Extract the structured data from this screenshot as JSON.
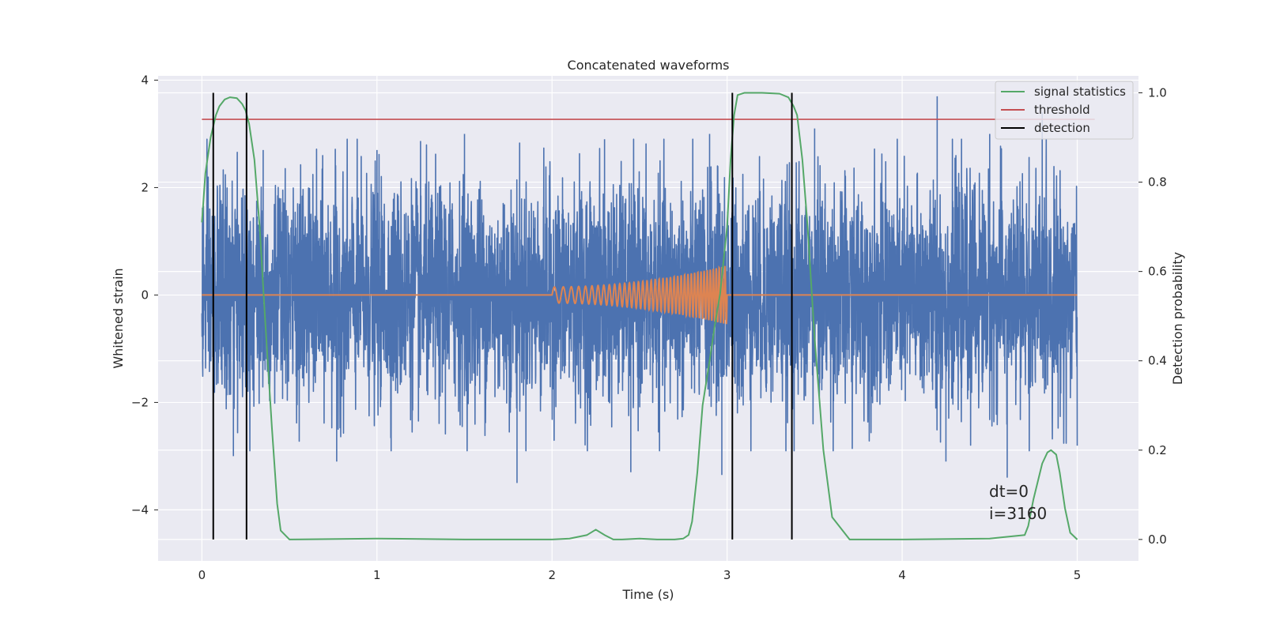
{
  "chart_data": {
    "type": "line",
    "title": "Concatenated waveforms",
    "xlabel": "Time (s)",
    "ylabel": "Whitened strain",
    "ylabel_right": "Detection probability",
    "xlim": [
      -0.25,
      5.35
    ],
    "ylim": [
      -4.95,
      4.08
    ],
    "ylim_right": [
      -0.048,
      1.038
    ],
    "x_ticks": [
      0,
      1,
      2,
      3,
      4,
      5
    ],
    "x_tick_labels": [
      "0",
      "1",
      "2",
      "3",
      "4",
      "5"
    ],
    "y_ticks": [
      -4,
      -2,
      0,
      2,
      4
    ],
    "y_tick_labels": [
      "−4",
      "−2",
      "0",
      "2",
      "4"
    ],
    "y_right_ticks": [
      0.0,
      0.2,
      0.4,
      0.6,
      0.8,
      1.0
    ],
    "y_right_tick_labels": [
      "0.0",
      "0.2",
      "0.4",
      "0.6",
      "0.8",
      "1.0"
    ],
    "grid": true,
    "legend_position": "upper-right",
    "legend": [
      {
        "label": "signal statistics",
        "color": "#55a868"
      },
      {
        "label": "threshold",
        "color": "#c44e52"
      },
      {
        "label": "detection",
        "color": "#000000"
      }
    ],
    "series": [
      {
        "name": "noise",
        "color": "#4c72b0",
        "axis": "left",
        "description": "whitened noise, approx. Gaussian",
        "x_range": [
          0,
          5
        ],
        "std": 1.0,
        "peaks": [
          [
            0.35,
            2.7
          ],
          [
            1.0,
            2.7
          ],
          [
            1.5,
            3.0
          ],
          [
            2.3,
            2.9
          ],
          [
            2.9,
            3.0
          ],
          [
            3.5,
            3.1
          ],
          [
            4.2,
            3.7
          ],
          [
            4.5,
            3.0
          ],
          [
            4.8,
            3.4
          ]
        ],
        "troughs": [
          [
            0.18,
            -3.0
          ],
          [
            0.77,
            -3.1
          ],
          [
            1.8,
            -3.5
          ],
          [
            2.45,
            -3.3
          ],
          [
            2.97,
            -3.35
          ],
          [
            4.25,
            -3.1
          ],
          [
            4.6,
            -3.4
          ]
        ]
      },
      {
        "name": "injected signal",
        "color": "#dd8452",
        "axis": "left",
        "description": "chirp between 2.0 s and 3.0 s",
        "start": 2.0,
        "end": 3.0,
        "start_amplitude": 0.15,
        "end_amplitude": 0.55
      },
      {
        "name": "signal statistics",
        "color": "#55a868",
        "axis": "right",
        "x": [
          0.0,
          0.02,
          0.05,
          0.08,
          0.1,
          0.13,
          0.16,
          0.2,
          0.23,
          0.25,
          0.27,
          0.3,
          0.33,
          0.36,
          0.4,
          0.43,
          0.45,
          0.5,
          1.0,
          1.5,
          2.0,
          2.1,
          2.2,
          2.25,
          2.3,
          2.35,
          2.4,
          2.5,
          2.6,
          2.7,
          2.75,
          2.78,
          2.8,
          2.83,
          2.86,
          2.9,
          2.93,
          2.96,
          3.0,
          3.02,
          3.04,
          3.06,
          3.1,
          3.2,
          3.3,
          3.35,
          3.38,
          3.4,
          3.43,
          3.46,
          3.5,
          3.55,
          3.6,
          3.7,
          4.0,
          4.5,
          4.7,
          4.72,
          4.75,
          4.8,
          4.83,
          4.85,
          4.88,
          4.9,
          4.93,
          4.96,
          5.0
        ],
        "y": [
          0.71,
          0.82,
          0.9,
          0.95,
          0.97,
          0.985,
          0.99,
          0.988,
          0.975,
          0.96,
          0.93,
          0.85,
          0.7,
          0.5,
          0.25,
          0.08,
          0.02,
          0.0,
          0.002,
          0.0,
          0.0,
          0.002,
          0.01,
          0.022,
          0.01,
          0.0,
          0.0,
          0.002,
          0.0,
          0.0,
          0.002,
          0.01,
          0.04,
          0.15,
          0.3,
          0.4,
          0.48,
          0.55,
          0.7,
          0.85,
          0.95,
          0.995,
          1.0,
          1.0,
          0.998,
          0.99,
          0.97,
          0.95,
          0.85,
          0.7,
          0.45,
          0.2,
          0.05,
          0.0,
          0.0,
          0.002,
          0.01,
          0.03,
          0.09,
          0.17,
          0.195,
          0.2,
          0.19,
          0.15,
          0.07,
          0.015,
          0.0
        ]
      },
      {
        "name": "threshold",
        "color": "#c44e52",
        "axis": "left",
        "x": [
          0,
          5.1
        ],
        "y": [
          3.27,
          3.27
        ]
      },
      {
        "name": "detection",
        "color": "#000000",
        "axis": "right",
        "type": "vlines",
        "x": [
          0.065,
          0.255,
          3.03,
          3.37
        ],
        "ymin": 0.0,
        "ymax": 1.0
      }
    ],
    "annotations": [
      "dt=0",
      "i=3160"
    ]
  }
}
